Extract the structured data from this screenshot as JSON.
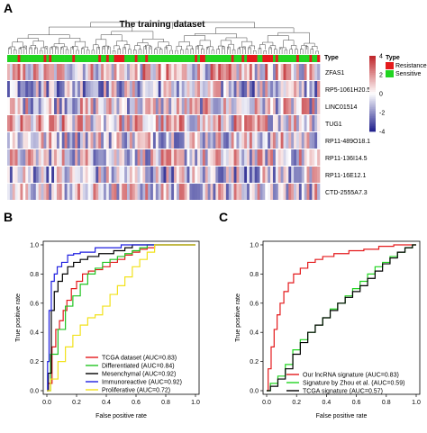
{
  "panels": {
    "A": "A",
    "B": "B",
    "C": "C"
  },
  "chart_data": [
    {
      "type": "heatmap",
      "title": "The training dataset",
      "annotation_label": "Type",
      "rows": [
        "ZFAS1",
        "RP5-1061H20.5",
        "LINC01514",
        "TUG1",
        "RP11-489O18.1",
        "RP11-136I14.5",
        "RP11-16E12.1",
        "CTD-2555A7.3"
      ],
      "color_scale": {
        "min": -4,
        "max": 4,
        "ticks": [
          4,
          2,
          0,
          -2,
          -4
        ],
        "low_color": "#23238e",
        "mid_color": "#ffffff",
        "high_color": "#c0282d"
      },
      "legend": {
        "title": "Type",
        "entries": [
          {
            "name": "Resistance",
            "color": "#e41a1c"
          },
          {
            "name": "Sensitive",
            "color": "#21d421"
          }
        ]
      }
    },
    {
      "type": "line",
      "xlabel": "False positive rate",
      "ylabel": "True positive rate",
      "xlim": [
        0,
        1
      ],
      "ylim": [
        0,
        1
      ],
      "ticks": [
        "0.0",
        "0.2",
        "0.4",
        "0.6",
        "0.8",
        "1.0"
      ],
      "legend_position": "bottom-right",
      "series": [
        {
          "name": "TCGA dataset (AUC=0.83)",
          "color": "#e41a1c",
          "x": [
            0,
            0.02,
            0.05,
            0.07,
            0.1,
            0.12,
            0.15,
            0.18,
            0.22,
            0.26,
            0.3,
            0.35,
            0.4,
            0.45,
            0.5,
            0.55,
            0.6,
            0.65,
            0.7,
            0.75,
            0.8,
            1.0
          ],
          "y": [
            0,
            0.05,
            0.3,
            0.42,
            0.48,
            0.55,
            0.62,
            0.7,
            0.75,
            0.8,
            0.82,
            0.83,
            0.85,
            0.88,
            0.9,
            0.93,
            0.95,
            0.97,
            0.98,
            1.0,
            1.0,
            1.0
          ]
        },
        {
          "name": "Differentiated (AUC=0.84)",
          "color": "#21c421",
          "x": [
            0,
            0.05,
            0.1,
            0.15,
            0.2,
            0.25,
            0.3,
            0.35,
            0.4,
            0.45,
            0.5,
            0.55,
            0.6,
            0.65,
            0.7,
            0.8,
            1.0
          ],
          "y": [
            0,
            0.25,
            0.42,
            0.58,
            0.65,
            0.73,
            0.8,
            0.84,
            0.88,
            0.9,
            0.92,
            0.94,
            0.96,
            0.98,
            1.0,
            1.0,
            1.0
          ]
        },
        {
          "name": "Mesenchymal (AUC=0.92)",
          "color": "#000000",
          "x": [
            0,
            0.02,
            0.04,
            0.06,
            0.09,
            0.12,
            0.16,
            0.2,
            0.25,
            0.3,
            0.4,
            0.5,
            0.55,
            0.6,
            0.7,
            1.0
          ],
          "y": [
            0,
            0.12,
            0.55,
            0.68,
            0.75,
            0.8,
            0.85,
            0.88,
            0.9,
            0.92,
            0.94,
            0.96,
            0.98,
            1.0,
            1.0,
            1.0
          ]
        },
        {
          "name": "Immunoreactive (AUC=0.92)",
          "color": "#1f1fe0",
          "x": [
            0,
            0.01,
            0.02,
            0.04,
            0.06,
            0.08,
            0.12,
            0.16,
            0.2,
            0.25,
            0.3,
            0.35,
            0.45,
            0.55,
            0.6,
            1.0
          ],
          "y": [
            0,
            0.2,
            0.55,
            0.75,
            0.8,
            0.85,
            0.88,
            0.93,
            0.94,
            0.95,
            0.95,
            0.98,
            0.98,
            1.0,
            1.0,
            1.0
          ]
        },
        {
          "name": "Proliferative (AUC=0.72)",
          "color": "#f2e21c",
          "x": [
            0,
            0.05,
            0.1,
            0.15,
            0.2,
            0.25,
            0.3,
            0.35,
            0.4,
            0.45,
            0.5,
            0.55,
            0.6,
            0.65,
            0.7,
            0.75,
            0.8,
            1.0
          ],
          "y": [
            0,
            0.08,
            0.2,
            0.3,
            0.38,
            0.45,
            0.5,
            0.52,
            0.58,
            0.66,
            0.72,
            0.78,
            0.85,
            0.9,
            0.95,
            1.0,
            1.0,
            1.0
          ]
        }
      ]
    },
    {
      "type": "line",
      "xlabel": "False positive rate",
      "ylabel": "True positive rate",
      "xlim": [
        0,
        1
      ],
      "ylim": [
        0,
        1
      ],
      "ticks": [
        "0.0",
        "0.2",
        "0.4",
        "0.6",
        "0.8",
        "1.0"
      ],
      "legend_position": "bottom-right",
      "series": [
        {
          "name": "Our lncRNA signature (AUC=0.83)",
          "color": "#e41a1c",
          "x": [
            0,
            0.02,
            0.04,
            0.06,
            0.08,
            0.1,
            0.13,
            0.16,
            0.2,
            0.25,
            0.3,
            0.35,
            0.4,
            0.5,
            0.6,
            0.7,
            0.8,
            0.9,
            1.0
          ],
          "y": [
            0,
            0.15,
            0.3,
            0.42,
            0.52,
            0.6,
            0.68,
            0.74,
            0.8,
            0.84,
            0.88,
            0.9,
            0.92,
            0.94,
            0.96,
            0.97,
            0.99,
            1.0,
            1.0
          ]
        },
        {
          "name": "Signature by Zhou et al. (AUC=0.59)",
          "color": "#21d421",
          "x": [
            0,
            0.05,
            0.1,
            0.15,
            0.2,
            0.25,
            0.3,
            0.35,
            0.4,
            0.45,
            0.5,
            0.55,
            0.6,
            0.65,
            0.7,
            0.75,
            0.8,
            0.85,
            0.9,
            0.95,
            1.0
          ],
          "y": [
            0,
            0.05,
            0.1,
            0.18,
            0.28,
            0.35,
            0.4,
            0.45,
            0.5,
            0.56,
            0.6,
            0.65,
            0.7,
            0.75,
            0.8,
            0.85,
            0.88,
            0.92,
            0.95,
            0.98,
            1.0
          ]
        },
        {
          "name": "TCGA signature (AUC=0.57)",
          "color": "#000000",
          "x": [
            0,
            0.05,
            0.1,
            0.15,
            0.2,
            0.25,
            0.3,
            0.35,
            0.4,
            0.45,
            0.5,
            0.55,
            0.6,
            0.65,
            0.7,
            0.75,
            0.8,
            0.85,
            0.9,
            0.95,
            1.0
          ],
          "y": [
            0,
            0.03,
            0.08,
            0.15,
            0.25,
            0.33,
            0.4,
            0.45,
            0.5,
            0.55,
            0.6,
            0.64,
            0.68,
            0.72,
            0.77,
            0.82,
            0.87,
            0.91,
            0.95,
            0.98,
            1.0
          ]
        }
      ]
    }
  ]
}
